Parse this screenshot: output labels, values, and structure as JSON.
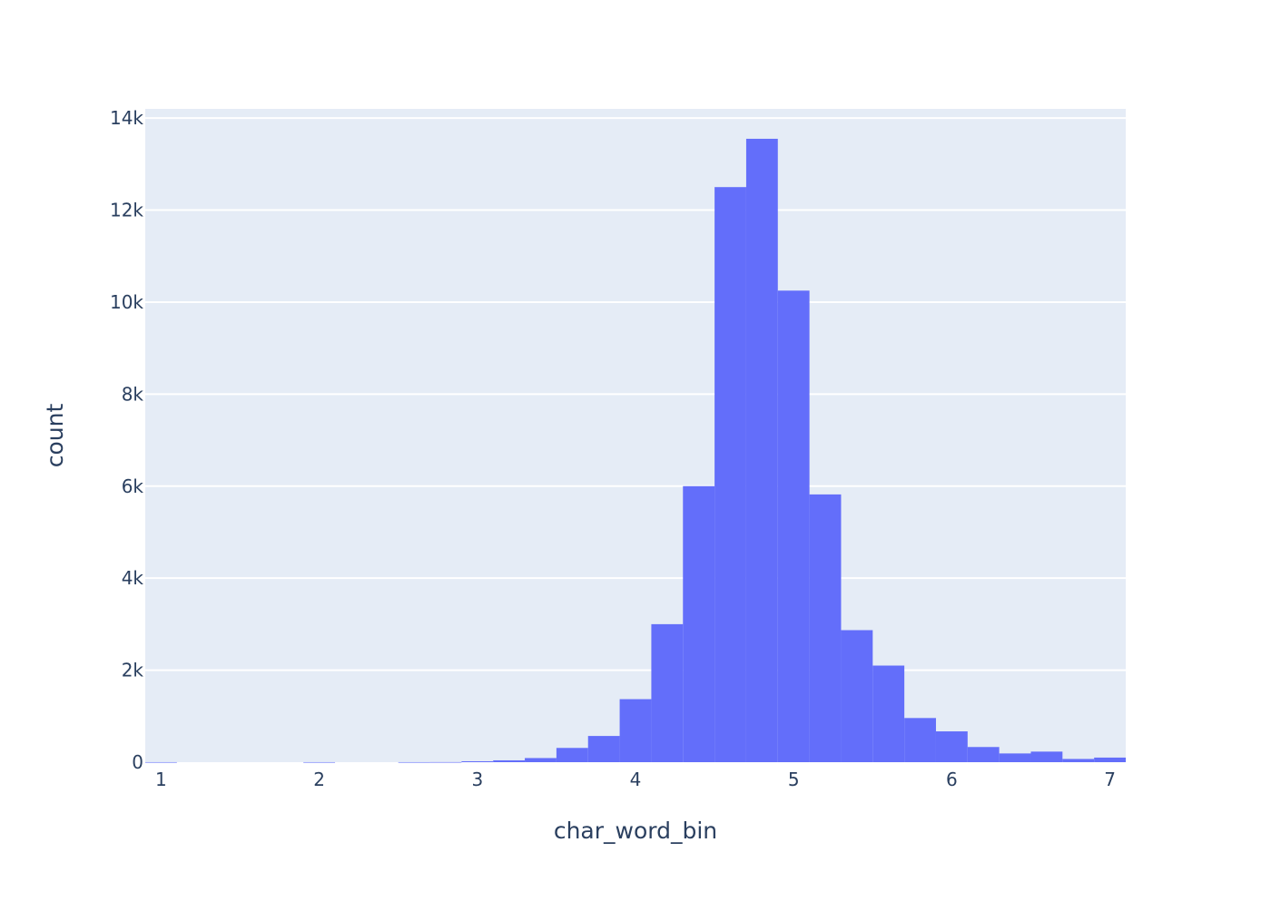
{
  "chart_data": {
    "type": "bar",
    "title": "",
    "xlabel": "char_word_bin",
    "ylabel": "count",
    "xlim": [
      0.9,
      7.1
    ],
    "ylim": [
      0,
      14200
    ],
    "x_ticks": [
      1,
      2,
      3,
      4,
      5,
      6,
      7
    ],
    "x_tick_labels": [
      "1",
      "2",
      "3",
      "4",
      "5",
      "6",
      "7"
    ],
    "y_ticks": [
      0,
      2000,
      4000,
      6000,
      8000,
      10000,
      12000,
      14000
    ],
    "y_tick_labels": [
      "0",
      "2k",
      "4k",
      "6k",
      "8k",
      "10k",
      "12k",
      "14k"
    ],
    "bin_width": 0.2,
    "bin_starts": [
      0.9,
      1.1,
      1.3,
      1.5,
      1.7,
      1.9,
      2.1,
      2.3,
      2.5,
      2.7,
      2.9,
      3.1,
      3.3,
      3.5,
      3.7,
      3.9,
      4.1,
      4.3,
      4.5,
      4.7,
      4.9,
      5.1,
      5.3,
      5.5,
      5.7,
      5.9,
      6.1,
      6.3,
      6.5,
      6.7,
      6.9
    ],
    "values": [
      1,
      0,
      0,
      0,
      0,
      1,
      0,
      0,
      1,
      2,
      20,
      40,
      90,
      310,
      570,
      1370,
      3000,
      6000,
      12500,
      13550,
      10250,
      5820,
      2870,
      2100,
      960,
      670,
      330,
      190,
      230,
      70,
      100
    ],
    "grid": true,
    "legend": "none"
  },
  "colors": {
    "bar": "#636efa",
    "plot_background": "#e5ecf6",
    "grid": "#ffffff",
    "text": "#2a3f5f",
    "page_background": "#ffffff"
  }
}
